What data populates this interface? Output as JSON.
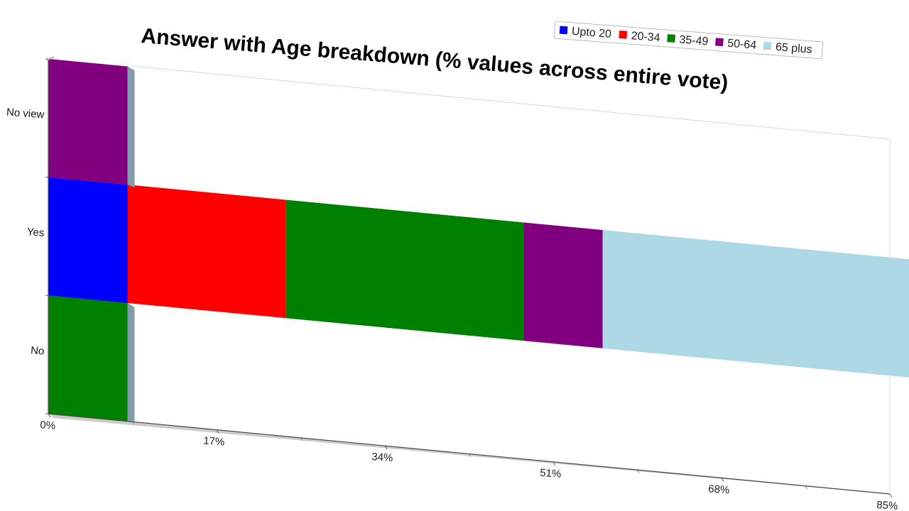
{
  "chart_data": {
    "type": "bar",
    "orientation": "horizontal",
    "stacked": true,
    "title": "Answer with Age breakdown (% values across entire vote)",
    "categories": [
      "No",
      "Yes",
      "No view"
    ],
    "series": [
      {
        "name": "Upto 20",
        "color": "#0000ff",
        "values": [
          0,
          8,
          0
        ]
      },
      {
        "name": "20-34",
        "color": "#ff0000",
        "values": [
          0,
          16,
          0
        ]
      },
      {
        "name": "35-49",
        "color": "#008000",
        "values": [
          8,
          24,
          0
        ]
      },
      {
        "name": "50-64",
        "color": "#800080",
        "values": [
          0,
          8,
          8
        ]
      },
      {
        "name": "65 plus",
        "color": "#add8e6",
        "values": [
          0,
          32,
          0
        ]
      }
    ],
    "x_ticks": [
      "0%",
      "17%",
      "34%",
      "51%",
      "68%",
      "85%"
    ],
    "xlim": [
      0,
      85
    ],
    "grid": false,
    "legend_position": "top-right",
    "style": "3d, rotated perspective"
  }
}
